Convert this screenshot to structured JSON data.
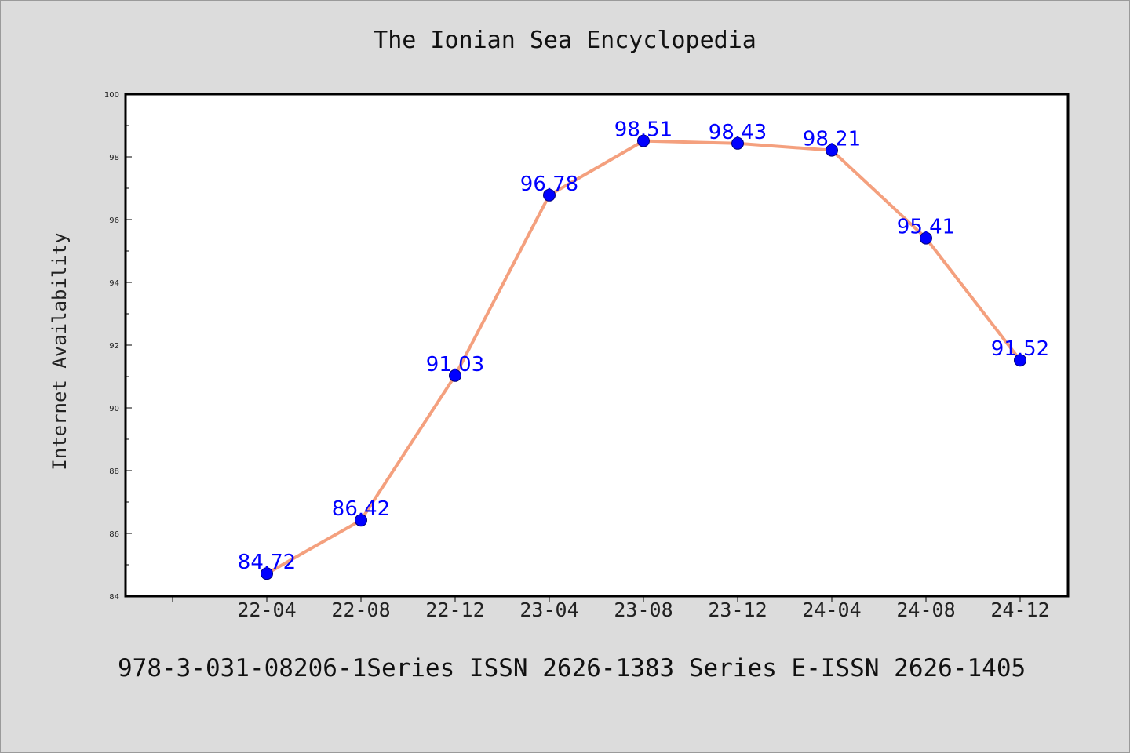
{
  "title": "The Ionian Sea Encyclopedia",
  "footer": "978-3-031-08206-1Series ISSN 2626-1383 Series E-ISSN 2626-1405",
  "colors": {
    "background": "#dcdcdc",
    "plot_area": "#ffffff",
    "line": "#f4a07e",
    "marker": "#0000ff",
    "data_label": "#0000ff"
  },
  "chart_data": {
    "type": "line",
    "title": "The Ionian Sea Encyclopedia",
    "xlabel": "",
    "ylabel": "Internet Availability",
    "categories": [
      "22-04",
      "22-08",
      "22-12",
      "23-04",
      "23-08",
      "23-12",
      "24-04",
      "24-08",
      "24-12"
    ],
    "series": [
      {
        "values": [
          84.72,
          86.42,
          91.03,
          96.78,
          98.51,
          98.43,
          98.21,
          95.41,
          91.52
        ]
      }
    ],
    "data_labels": [
      "84.72",
      "86.42",
      "91.03",
      "96.78",
      "98.51",
      "98.43",
      "98.21",
      "95.41",
      "91.52"
    ],
    "ylim": [
      84,
      100
    ],
    "yticks": [
      "84",
      "86",
      "88",
      "90",
      "92",
      "94",
      "96",
      "98",
      "100"
    ],
    "grid": false,
    "legend": "none"
  }
}
